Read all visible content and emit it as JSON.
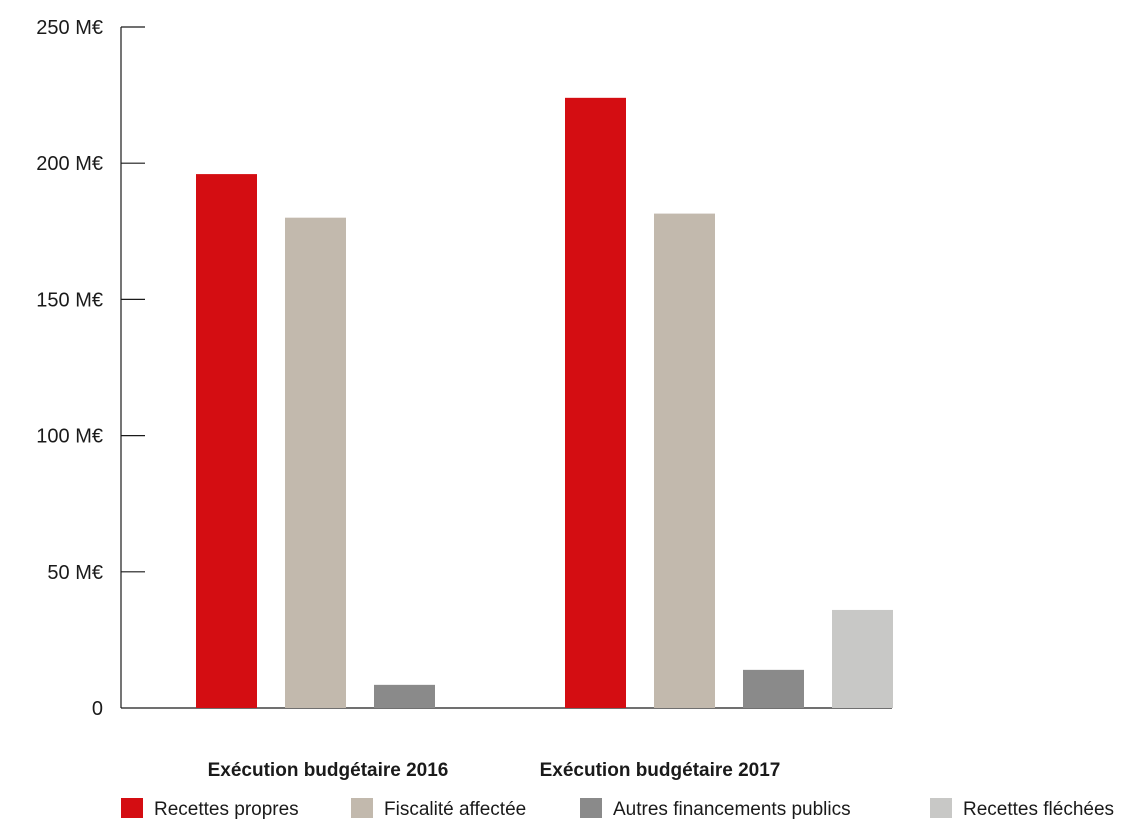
{
  "chart_data": {
    "type": "bar",
    "title": "",
    "xlabel": "",
    "ylabel": "",
    "categories": [
      "Exécution budgétaire 2016",
      "Exécution budgétaire 2017"
    ],
    "series": [
      {
        "name": "Recettes propres",
        "color": "#d40d12",
        "values": [
          196,
          224
        ]
      },
      {
        "name": "Fiscalité affectée",
        "color": "#c2b9ad",
        "values": [
          180,
          181.5
        ]
      },
      {
        "name": "Autres financements publics",
        "color": "#8a8a8a",
        "values": [
          8.5,
          14
        ]
      },
      {
        "name": "Recettes fléchées",
        "color": "#c8c8c6",
        "values": [
          null,
          36
        ]
      }
    ],
    "ylim": [
      0,
      250
    ],
    "yticks": [
      0,
      50,
      100,
      150,
      200,
      250
    ],
    "ytick_labels": [
      "0",
      "50 M€",
      "100 M€",
      "150 M€",
      "200 M€",
      "250 M€"
    ],
    "grid": false,
    "legend": "bottom",
    "axis_color": "#1a1a1a"
  }
}
